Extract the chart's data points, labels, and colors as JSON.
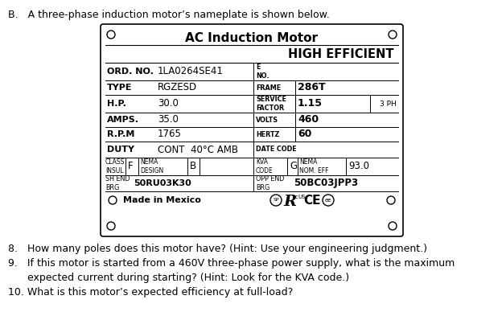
{
  "header": "B.   A three-phase induction motor’s nameplate is shown below.",
  "title_line1": "AC Induction Motor",
  "title_line2": "HIGH EFFICIENT",
  "rows": [
    {
      "ll": "ORD. NO.",
      "lv": "1LA0264SE41",
      "ml": "E\nNO.",
      "mv": "",
      "rl": "",
      "rv": ""
    },
    {
      "ll": "TYPE",
      "lv": "RGZESD",
      "ml": "FRAME",
      "mv": "286T",
      "rl": "",
      "rv": ""
    },
    {
      "ll": "H.P.",
      "lv": "30.0",
      "ml": "SERVICE\nFACTOR",
      "mv": "1.15",
      "rl": "3 PH",
      "rv": ""
    },
    {
      "ll": "AMPS.",
      "lv": "35.0",
      "ml": "VOLTS",
      "mv": "460",
      "rl": "",
      "rv": ""
    },
    {
      "ll": "R.P.M",
      "lv": "1765",
      "ml": "HERTZ",
      "mv": "60",
      "rl": "",
      "rv": ""
    },
    {
      "ll": "DUTY",
      "lv": "CONT  40°C AMB",
      "ml": "DATE CODE",
      "mv": "",
      "rl": "",
      "rv": ""
    }
  ],
  "br1_cl": "CLASS\nINSUL",
  "br1_cv": "F",
  "br1_nl": "NEMA\nDESIGN",
  "br1_nv": "B",
  "br1_kl": "KVA\nCODE",
  "br1_kv": "G",
  "br1_el": "NEMA\nNOM. EFF",
  "br1_ev": "93.0",
  "br2_sl": "SH END\nBRG",
  "br2_sv": "50RU03K30",
  "br2_ol": "OPP END\nBRG",
  "br2_ov": "50BC03JPP3",
  "footer": "Made in Mexico",
  "q1": "8.   How many poles does this motor have? (Hint: Use your engineering judgment.)",
  "q2": "9.   If this motor is started from a 460V three-phase power supply, what is the maximum",
  "q2b": "      expected current during starting? (Hint: Look for the KVA code.)",
  "q3": "10. What is this motor’s expected efficiency at full-load?",
  "bg": "#ffffff"
}
